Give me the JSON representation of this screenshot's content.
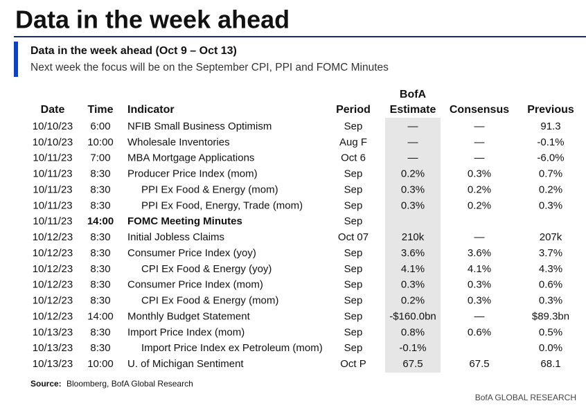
{
  "header": {
    "title": "Data in the week ahead",
    "subtitle": "Data in the week ahead (Oct 9 – Oct 13)",
    "description": "Next week the focus will be on the September CPI, PPI and FOMC Minutes"
  },
  "table": {
    "columns": {
      "date": "Date",
      "time": "Time",
      "indicator": "Indicator",
      "period": "Period",
      "bofa_top": "BofA",
      "bofa": "Estimate",
      "consensus": "Consensus",
      "previous": "Previous"
    },
    "rows": [
      {
        "date": "10/10/23",
        "time": "6:00",
        "indicator": "NFIB Small Business Optimism",
        "period": "Sep",
        "bofa": "—",
        "consensus": "—",
        "previous": "91.3"
      },
      {
        "date": "10/10/23",
        "time": "10:00",
        "indicator": "Wholesale Inventories",
        "period": "Aug F",
        "bofa": "—",
        "consensus": "—",
        "previous": "-0.1%"
      },
      {
        "date": "10/11/23",
        "time": "7:00",
        "indicator": "MBA Mortgage Applications",
        "period": "Oct 6",
        "bofa": "—",
        "consensus": "—",
        "previous": "-6.0%"
      },
      {
        "date": "10/11/23",
        "time": "8:30",
        "indicator": "Producer Price Index (mom)",
        "period": "Sep",
        "bofa": "0.2%",
        "consensus": "0.3%",
        "previous": "0.7%"
      },
      {
        "date": "10/11/23",
        "time": "8:30",
        "indicator": "PPI Ex Food & Energy (mom)",
        "indent": true,
        "period": "Sep",
        "bofa": "0.3%",
        "consensus": "0.2%",
        "previous": "0.2%"
      },
      {
        "date": "10/11/23",
        "time": "8:30",
        "indicator": "PPI Ex Food, Energy, Trade (mom)",
        "indent": true,
        "period": "Sep",
        "bofa": "0.3%",
        "consensus": "0.2%",
        "previous": "0.3%"
      },
      {
        "date": "10/11/23",
        "time": "14:00",
        "indicator": "FOMC Meeting Minutes",
        "bold": true,
        "period": "Sep"
      },
      {
        "date": "10/12/23",
        "time": "8:30",
        "indicator": "Initial Jobless Claims",
        "period": "Oct 07",
        "bofa": "210k",
        "consensus": "—",
        "previous": "207k"
      },
      {
        "date": "10/12/23",
        "time": "8:30",
        "indicator": "Consumer Price Index (yoy)",
        "period": "Sep",
        "bofa": "3.6%",
        "consensus": "3.6%",
        "previous": "3.7%"
      },
      {
        "date": "10/12/23",
        "time": "8:30",
        "indicator": "CPI Ex Food & Energy (yoy)",
        "indent": true,
        "period": "Sep",
        "bofa": "4.1%",
        "consensus": "4.1%",
        "previous": "4.3%"
      },
      {
        "date": "10/12/23",
        "time": "8:30",
        "indicator": "Consumer Price Index (mom)",
        "period": "Sep",
        "bofa": "0.3%",
        "consensus": "0.3%",
        "previous": "0.6%"
      },
      {
        "date": "10/12/23",
        "time": "8:30",
        "indicator": "CPI Ex Food & Energy (mom)",
        "indent": true,
        "period": "Sep",
        "bofa": "0.2%",
        "consensus": "0.3%",
        "previous": "0.3%"
      },
      {
        "date": "10/12/23",
        "time": "14:00",
        "indicator": "Monthly Budget Statement",
        "period": "Sep",
        "bofa": "-$160.0bn",
        "consensus": "—",
        "previous": "$89.3bn"
      },
      {
        "date": "10/13/23",
        "time": "8:30",
        "indicator": "Import Price Index (mom)",
        "period": "Sep",
        "bofa": "0.8%",
        "consensus": "0.6%",
        "previous": "0.5%"
      },
      {
        "date": "10/13/23",
        "time": "8:30",
        "indicator": "Import Price Index ex Petroleum (mom)",
        "indent": true,
        "period": "Sep",
        "bofa": "-0.1%",
        "previous": "0.0%"
      },
      {
        "date": "10/13/23",
        "time": "10:00",
        "indicator": "U. of Michigan Sentiment",
        "period": "Oct P",
        "bofa": "67.5",
        "consensus": "67.5",
        "previous": "68.1"
      }
    ]
  },
  "footer": {
    "source_label": "Source:",
    "source": "Bloomberg, BofA Global Research",
    "brand": "BofA GLOBAL RESEARCH"
  }
}
